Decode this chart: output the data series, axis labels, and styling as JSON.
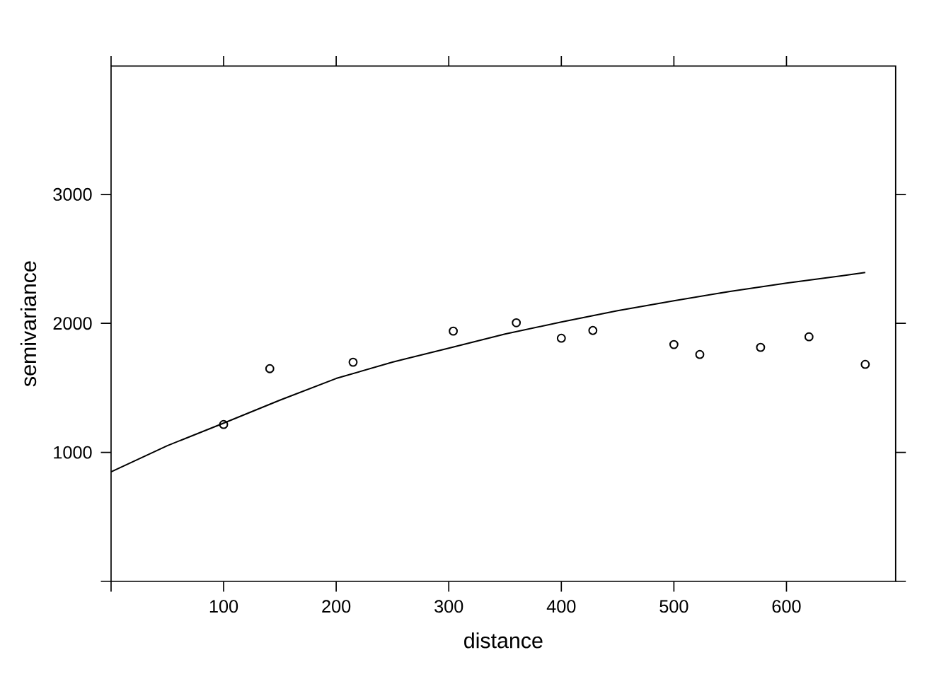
{
  "chart_data": {
    "type": "scatter",
    "xlabel": "distance",
    "ylabel": "semivariance",
    "xlim": [
      0,
      697
    ],
    "ylim": [
      0,
      3995
    ],
    "xticks": [
      {
        "value": 0,
        "label": null
      },
      100,
      200,
      300,
      400,
      500,
      600
    ],
    "yticks": [
      {
        "value": 0,
        "label": null
      },
      1000,
      2000,
      3000
    ],
    "series": [
      {
        "color": "#000000",
        "marker": "circle",
        "x": [
          100,
          141,
          215,
          304,
          360,
          400,
          428,
          500,
          523,
          577,
          620,
          670
        ],
        "values": [
          1216,
          1649,
          1699,
          1940,
          2005,
          1885,
          1945,
          1836,
          1759,
          1814,
          1896,
          1682
        ]
      },
      {
        "type": "line",
        "color": "#000000",
        "marker": "none",
        "x": [
          0,
          50,
          100,
          150,
          200,
          250,
          300,
          350,
          400,
          450,
          500,
          550,
          600,
          650,
          670
        ],
        "values": [
          849,
          1052,
          1227,
          1405,
          1573,
          1700,
          1808,
          1917,
          2011,
          2098,
          2175,
          2248,
          2312,
          2370,
          2395
        ]
      }
    ]
  }
}
